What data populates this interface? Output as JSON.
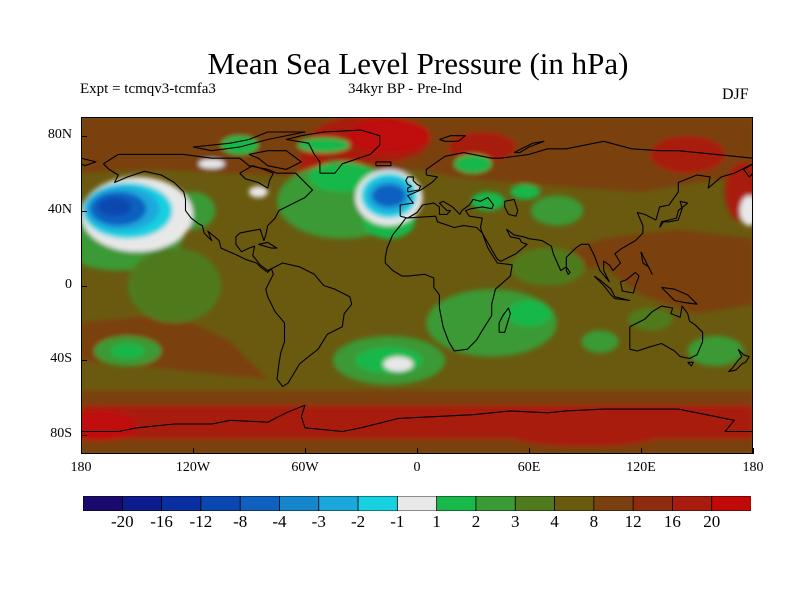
{
  "title": "Mean Sea Level Pressure (in hPa)",
  "subtitle_left": "Expt = tcmqv3-tcmfa3",
  "subtitle_center": "34kyr BP - Pre-Ind",
  "subtitle_right": "DJF",
  "lat_labels": [
    "80N",
    "40N",
    "0",
    "40S",
    "80S"
  ],
  "lat_values": [
    80,
    40,
    0,
    -40,
    -80
  ],
  "lon_labels": [
    "180",
    "120W",
    "60W",
    "0",
    "60E",
    "120E",
    "180"
  ],
  "lon_values": [
    -180,
    -120,
    -60,
    0,
    60,
    120,
    180
  ],
  "lat_range": [
    -90,
    90
  ],
  "lon_range": [
    -180,
    180
  ],
  "colorbar": {
    "labels": [
      "-20",
      "-16",
      "-12",
      "-8",
      "-4",
      "-3",
      "-2",
      "-1",
      "1",
      "2",
      "3",
      "4",
      "8",
      "12",
      "16",
      "20"
    ],
    "colors": [
      "#1b0a6e",
      "#0d1c8c",
      "#0a2fa0",
      "#0b47b0",
      "#1060c0",
      "#1585cc",
      "#1aa8dc",
      "#17d0e0",
      "#e8e8e8",
      "#19b84a",
      "#3a9a36",
      "#4f7a1e",
      "#6a5a10",
      "#7a4010",
      "#8e2c10",
      "#a81c10",
      "#c00a0a"
    ]
  },
  "map_colors": {
    "ocean_base": "#6a5a10",
    "warm": "#7a4010",
    "hot": "#a81c10",
    "hottest": "#c00a0a",
    "green_light": "#19b84a",
    "green_mid": "#3a9a36",
    "green_dark": "#4f7a1e",
    "pale": "#e8e8e8",
    "cyan": "#17d0e0",
    "blue_light": "#1aa8dc",
    "blue_mid": "#1060c0",
    "blue_deep": "#0b47b0"
  }
}
